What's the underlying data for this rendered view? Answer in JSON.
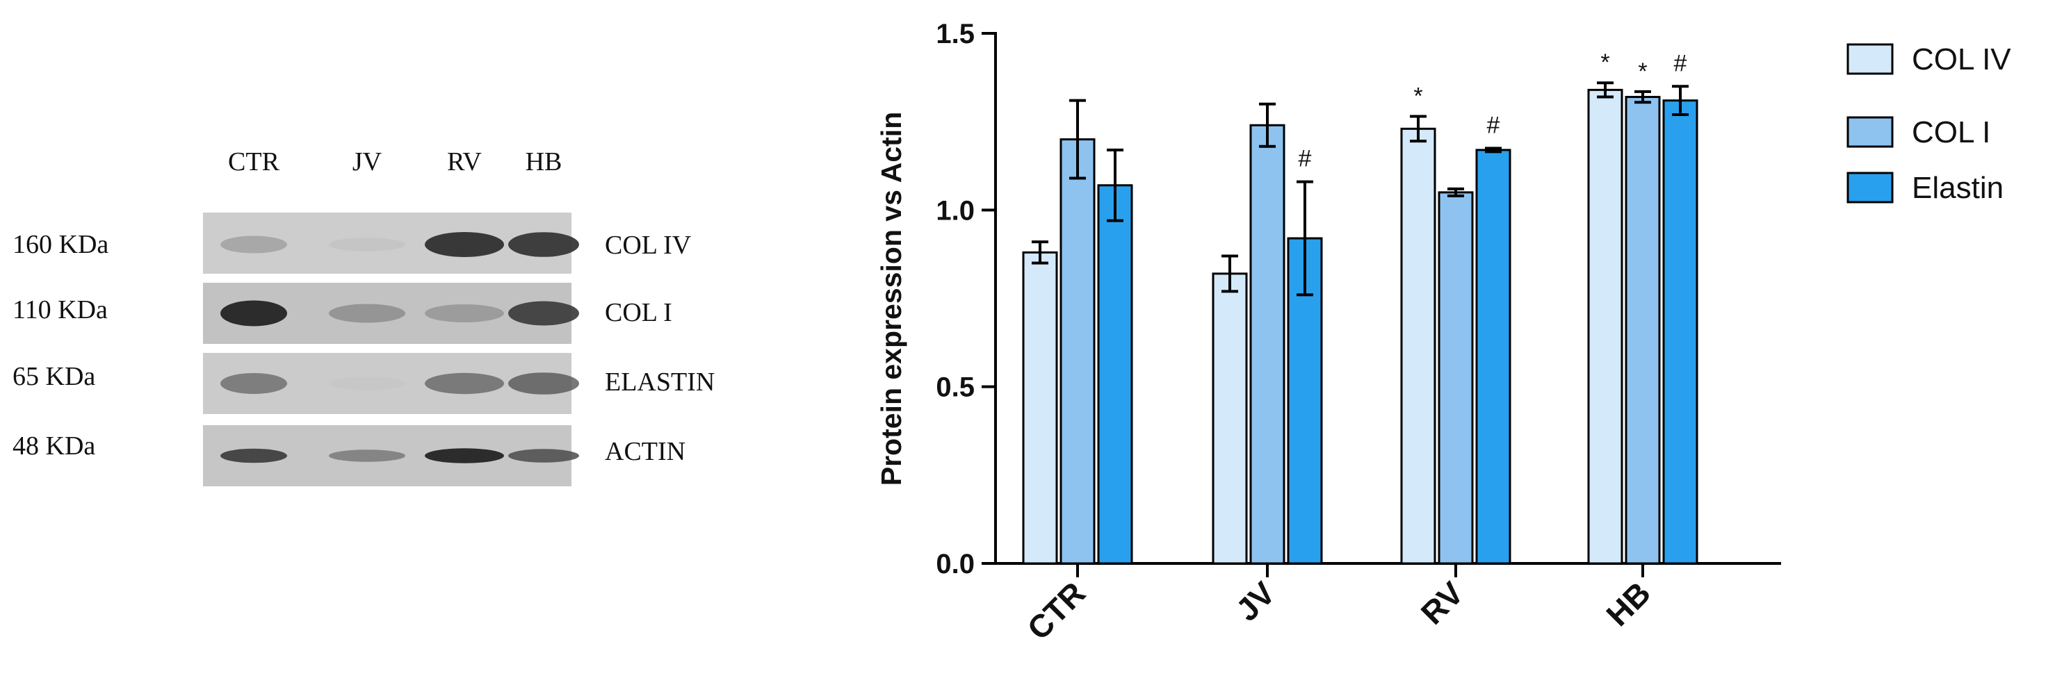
{
  "blot": {
    "lanes": [
      "CTR",
      "JV",
      "RV",
      "HB"
    ],
    "rows": [
      {
        "weight": "160 KDa",
        "protein": "COL IV",
        "intensity": [
          0.35,
          0.08,
          0.9,
          0.88
        ]
      },
      {
        "weight": "110 KDa",
        "protein": "COL I",
        "intensity": [
          0.95,
          0.45,
          0.4,
          0.85
        ]
      },
      {
        "weight": "65 KDa",
        "protein": "ELASTIN",
        "intensity": [
          0.6,
          0.05,
          0.62,
          0.68
        ]
      },
      {
        "weight": "48 KDa",
        "protein": "ACTIN",
        "intensity": [
          0.85,
          0.55,
          0.95,
          0.75
        ]
      }
    ]
  },
  "chart_data": {
    "type": "bar",
    "ylabel": "Protein expression vs Actin",
    "xlabel": "",
    "ylim": [
      0,
      1.5
    ],
    "yticks": [
      0.0,
      0.5,
      1.0,
      1.5
    ],
    "ytick_labels": [
      "0.0",
      "0.5",
      "1.0",
      "1.5"
    ],
    "categories": [
      "CTR",
      "JV",
      "RV",
      "HB"
    ],
    "legend_position": "right",
    "series": [
      {
        "name": "COL IV",
        "color": "#d4e9fa",
        "values": [
          0.88,
          0.82,
          1.23,
          1.34
        ],
        "errors": [
          0.03,
          0.05,
          0.035,
          0.02
        ],
        "marks": [
          "",
          "",
          "*",
          "*"
        ]
      },
      {
        "name": "COL I",
        "color": "#8ec3f0",
        "values": [
          1.2,
          1.24,
          1.05,
          1.32
        ],
        "errors": [
          0.11,
          0.06,
          0.01,
          0.015
        ],
        "marks": [
          "",
          "",
          "",
          "*"
        ]
      },
      {
        "name": "Elastin",
        "color": "#29a0ee",
        "values": [
          1.07,
          0.92,
          1.17,
          1.31
        ],
        "errors": [
          0.1,
          0.16,
          0.005,
          0.04
        ],
        "marks": [
          "",
          "#",
          "#",
          "#"
        ]
      }
    ]
  }
}
